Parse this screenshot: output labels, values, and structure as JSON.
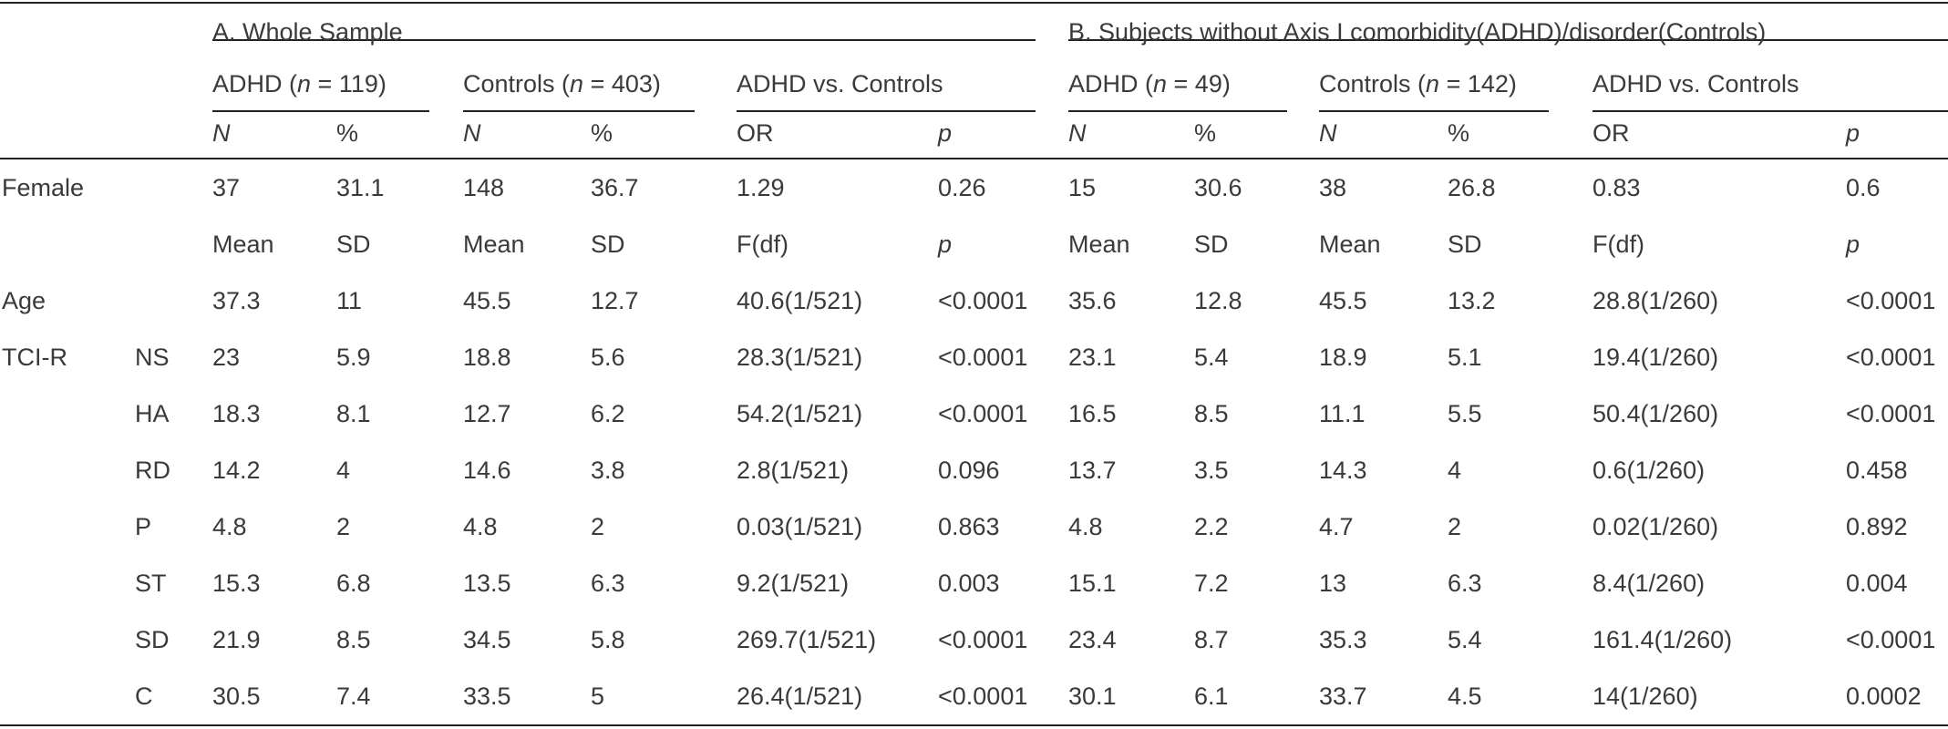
{
  "header": {
    "section_a": "A. Whole Sample",
    "section_b": "B. Subjects without Axis I comorbidity(ADHD)/disorder(Controls)",
    "a_adhd": "ADHD (",
    "a_adhd_n": "n",
    "a_adhd_val": " = 119)",
    "a_ctrl": "Controls (",
    "a_ctrl_n": "n",
    "a_ctrl_val": " = 403)",
    "a_vs": "ADHD vs. Controls",
    "b_adhd": "ADHD (",
    "b_adhd_n": "n",
    "b_adhd_val": " = 49)",
    "b_ctrl": "Controls (",
    "b_ctrl_n": "n",
    "b_ctrl_val": " = 142)",
    "b_vs": "ADHD vs. Controls",
    "sub1": [
      "N",
      "%",
      "N",
      "%",
      "OR",
      "p",
      "N",
      "%",
      "N",
      "%",
      "OR",
      "p"
    ],
    "sub2": [
      "Mean",
      "SD",
      "Mean",
      "SD",
      "F(df)",
      "p",
      "Mean",
      "SD",
      "Mean",
      "SD",
      "F(df)",
      "p"
    ]
  },
  "female_row": {
    "label": "Female",
    "values": [
      "37",
      "31.1",
      "148",
      "36.7",
      "1.29",
      "0.26",
      "15",
      "30.6",
      "38",
      "26.8",
      "0.83",
      "0.6"
    ]
  },
  "age_row": {
    "label": "Age",
    "values": [
      "37.3",
      "11",
      "45.5",
      "12.7",
      "40.6(1/521)",
      "<0.0001",
      "35.6",
      "12.8",
      "45.5",
      "13.2",
      "28.8(1/260)",
      "<0.0001"
    ]
  },
  "tci_label": "TCI-R",
  "tci_rows": [
    {
      "sub": "NS",
      "values": [
        "23",
        "5.9",
        "18.8",
        "5.6",
        "28.3(1/521)",
        "<0.0001",
        "23.1",
        "5.4",
        "18.9",
        "5.1",
        "19.4(1/260)",
        "<0.0001"
      ]
    },
    {
      "sub": "HA",
      "values": [
        "18.3",
        "8.1",
        "12.7",
        "6.2",
        "54.2(1/521)",
        "<0.0001",
        "16.5",
        "8.5",
        "11.1",
        "5.5",
        "50.4(1/260)",
        "<0.0001"
      ]
    },
    {
      "sub": "RD",
      "values": [
        "14.2",
        "4",
        "14.6",
        "3.8",
        "2.8(1/521)",
        "0.096",
        "13.7",
        "3.5",
        "14.3",
        "4",
        "0.6(1/260)",
        "0.458"
      ]
    },
    {
      "sub": "P",
      "values": [
        "4.8",
        "2",
        "4.8",
        "2",
        "0.03(1/521)",
        "0.863",
        "4.8",
        "2.2",
        "4.7",
        "2",
        "0.02(1/260)",
        "0.892"
      ]
    },
    {
      "sub": "ST",
      "values": [
        "15.3",
        "6.8",
        "13.5",
        "6.3",
        "9.2(1/521)",
        "0.003",
        "15.1",
        "7.2",
        "13",
        "6.3",
        "8.4(1/260)",
        "0.004"
      ]
    },
    {
      "sub": "SD",
      "values": [
        "21.9",
        "8.5",
        "34.5",
        "5.8",
        "269.7(1/521)",
        "<0.0001",
        "23.4",
        "8.7",
        "35.3",
        "5.4",
        "161.4(1/260)",
        "<0.0001"
      ]
    },
    {
      "sub": "C",
      "values": [
        "30.5",
        "7.4",
        "33.5",
        "5",
        "26.4(1/521)",
        "<0.0001",
        "30.1",
        "6.1",
        "33.7",
        "4.5",
        "14(1/260)",
        "0.0002"
      ]
    }
  ]
}
